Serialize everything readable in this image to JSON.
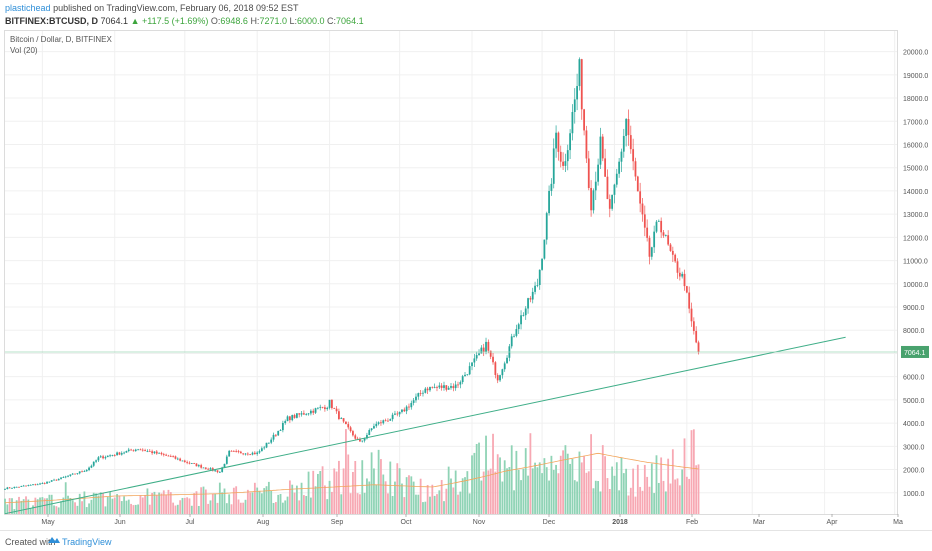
{
  "header": {
    "author": "plastichead",
    "published": "published on TradingView.com, February 06, 2018 09:52 EST",
    "symbol": "BITFINEX:BTCUSD, D",
    "last": "7064.1",
    "change": "▲ +117.5 (+1.69%)",
    "o_label": "O:",
    "o_value": "6948.6",
    "h_label": "H:",
    "h_value": "7271.0",
    "l_label": "L:",
    "l_value": "6000.0",
    "c_label": "C:",
    "c_value": "7064.1"
  },
  "legend": {
    "title": "Bitcoin / Dollar, D, BITFINEX",
    "volume": "Vol (20)"
  },
  "footer": {
    "created_with": "Created with",
    "brand": "TradingView"
  },
  "colors": {
    "up": "#26a69a",
    "down": "#ef5350",
    "up_vol": "#8fd3b5",
    "down_vol": "#f7a8b3",
    "trend": "#3fae88",
    "ma": "#f2a55c",
    "price_label": "#49a26e"
  },
  "chart_data": {
    "type": "candlestick",
    "y_axis_labels": [
      "1000.0",
      "2000.0",
      "3000.0",
      "4000.0",
      "5000.0",
      "6000.0",
      "7000.0",
      "8000.0",
      "9000.0",
      "10000.0",
      "11000.0",
      "12000.0",
      "13000.0",
      "14000.0",
      "15000.0",
      "16000.0",
      "17000.0",
      "18000.0",
      "19000.0",
      "20000.0"
    ],
    "y_axis_values": [
      1000,
      2000,
      3000,
      4000,
      5000,
      6000,
      7000,
      8000,
      9000,
      10000,
      11000,
      12000,
      13000,
      14000,
      15000,
      16000,
      17000,
      18000,
      19000,
      20000
    ],
    "ylim": [
      0,
      20500
    ],
    "x_tick_labels": [
      "May",
      "Jun",
      "Jul",
      "Aug",
      "Sep",
      "Oct",
      "Nov",
      "Dec",
      "2018",
      "Feb",
      "Mar",
      "Apr",
      "Ma"
    ],
    "last_price_label": "7064.1",
    "trendline": [
      {
        "date": "2017-04-15",
        "value": 100
      },
      {
        "date": "2018-04-10",
        "value": 7700
      }
    ],
    "price_keypoints": [
      [
        "2017-04-15",
        1190
      ],
      [
        "2017-05-01",
        1400
      ],
      [
        "2017-05-20",
        2000
      ],
      [
        "2017-05-25",
        2500
      ],
      [
        "2017-06-11",
        2900
      ],
      [
        "2017-06-25",
        2550
      ],
      [
        "2017-07-16",
        1900
      ],
      [
        "2017-07-20",
        2750
      ],
      [
        "2017-08-01",
        2700
      ],
      [
        "2017-08-14",
        4200
      ],
      [
        "2017-08-31",
        4750
      ],
      [
        "2017-09-01",
        4900
      ],
      [
        "2017-09-14",
        3150
      ],
      [
        "2017-09-20",
        3900
      ],
      [
        "2017-10-01",
        4400
      ],
      [
        "2017-10-12",
        5500
      ],
      [
        "2017-10-25",
        5600
      ],
      [
        "2017-11-07",
        7400
      ],
      [
        "2017-11-12",
        5950
      ],
      [
        "2017-11-20",
        8200
      ],
      [
        "2017-11-29",
        10000
      ],
      [
        "2017-12-07",
        16500
      ],
      [
        "2017-12-10",
        15000
      ],
      [
        "2017-12-17",
        19200
      ],
      [
        "2017-12-22",
        13500
      ],
      [
        "2017-12-26",
        16000
      ],
      [
        "2017-12-30",
        13000
      ],
      [
        "2018-01-06",
        17100
      ],
      [
        "2018-01-10",
        14500
      ],
      [
        "2018-01-16",
        11200
      ],
      [
        "2018-01-20",
        12800
      ],
      [
        "2018-01-26",
        11000
      ],
      [
        "2018-01-31",
        10100
      ],
      [
        "2018-02-02",
        8800
      ],
      [
        "2018-02-06",
        7064
      ]
    ],
    "volume_keypoints": [
      [
        "2017-04-15",
        600
      ],
      [
        "2017-06-01",
        900
      ],
      [
        "2017-07-15",
        1000
      ],
      [
        "2017-08-15",
        1300
      ],
      [
        "2017-09-15",
        2500
      ],
      [
        "2017-10-15",
        1400
      ],
      [
        "2017-11-12",
        3300
      ],
      [
        "2017-11-25",
        1800
      ],
      [
        "2017-12-08",
        2600
      ],
      [
        "2017-12-22",
        3000
      ],
      [
        "2018-01-10",
        1700
      ],
      [
        "2018-01-17",
        2300
      ],
      [
        "2018-02-06",
        3600
      ]
    ],
    "volume_ma_keypoints": [
      [
        "2017-04-15",
        500
      ],
      [
        "2017-06-01",
        800
      ],
      [
        "2017-07-15",
        900
      ],
      [
        "2017-08-15",
        1100
      ],
      [
        "2017-09-20",
        1300
      ],
      [
        "2017-10-15",
        1200
      ],
      [
        "2017-11-15",
        1900
      ],
      [
        "2017-12-10",
        2400
      ],
      [
        "2017-12-25",
        2700
      ],
      [
        "2018-01-15",
        2300
      ],
      [
        "2018-02-06",
        2000
      ]
    ]
  }
}
